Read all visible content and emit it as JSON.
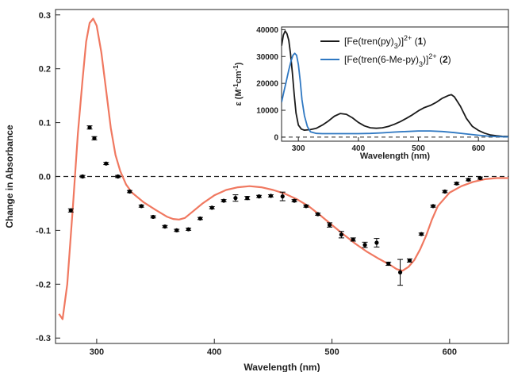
{
  "chart_data": [
    {
      "type": "scatter",
      "xlabel": "Wavelength (nm)",
      "ylabel": "Change in Absorbance",
      "xlim": [
        265,
        650
      ],
      "ylim": [
        -0.31,
        0.31
      ],
      "xticks": [
        300,
        400,
        500,
        600
      ],
      "yticks": [
        -0.3,
        -0.2,
        -0.1,
        0.0,
        0.1,
        0.2,
        0.3
      ],
      "ytick_labels": [
        "-0.3",
        "-0.2",
        "-0.1",
        "0.0",
        "0.1",
        "0.2",
        "0.3"
      ],
      "zero_line": "dashed",
      "grid": false,
      "colors": {
        "curve": "#f07860",
        "points": "#000000"
      },
      "series": [
        {
          "kind": "line",
          "x": [
            268,
            271,
            275,
            280,
            284,
            288,
            291,
            294,
            297,
            300,
            304,
            308,
            312,
            316,
            320,
            325,
            330,
            340,
            350,
            360,
            365,
            370,
            375,
            380,
            390,
            400,
            410,
            420,
            430,
            440,
            450,
            460,
            470,
            480,
            490,
            500,
            510,
            520,
            530,
            540,
            550,
            555,
            560,
            565,
            570,
            575,
            580,
            585,
            590,
            600,
            610,
            620,
            630,
            640,
            650
          ],
          "y": [
            -0.255,
            -0.265,
            -0.2,
            -0.05,
            0.08,
            0.18,
            0.25,
            0.285,
            0.293,
            0.28,
            0.23,
            0.16,
            0.09,
            0.04,
            0.01,
            -0.015,
            -0.03,
            -0.048,
            -0.062,
            -0.075,
            -0.079,
            -0.08,
            -0.077,
            -0.068,
            -0.05,
            -0.035,
            -0.025,
            -0.02,
            -0.018,
            -0.02,
            -0.025,
            -0.032,
            -0.042,
            -0.055,
            -0.072,
            -0.09,
            -0.108,
            -0.125,
            -0.14,
            -0.153,
            -0.165,
            -0.172,
            -0.175,
            -0.168,
            -0.155,
            -0.135,
            -0.11,
            -0.08,
            -0.055,
            -0.03,
            -0.018,
            -0.01,
            -0.005,
            -0.003,
            -0.003
          ]
        },
        {
          "kind": "points",
          "x": [
            278,
            288,
            294,
            298,
            308,
            318,
            328,
            338,
            348,
            358,
            368,
            378,
            388,
            398,
            408,
            418,
            428,
            438,
            448,
            458,
            468,
            478,
            488,
            498,
            508,
            518,
            528,
            538,
            548,
            558,
            566,
            576,
            586,
            596,
            606,
            616,
            626
          ],
          "y": [
            -0.063,
            0.0,
            0.091,
            0.071,
            0.024,
            0.0,
            -0.028,
            -0.055,
            -0.075,
            -0.093,
            -0.1,
            -0.098,
            -0.078,
            -0.058,
            -0.045,
            -0.04,
            -0.04,
            -0.037,
            -0.036,
            -0.037,
            -0.045,
            -0.055,
            -0.07,
            -0.09,
            -0.108,
            -0.117,
            -0.127,
            -0.123,
            -0.162,
            -0.178,
            -0.156,
            -0.107,
            -0.055,
            -0.028,
            -0.013,
            -0.006,
            -0.003
          ],
          "err": [
            0.003,
            0.002,
            0.003,
            0.003,
            0.002,
            0.002,
            0.002,
            0.002,
            0.002,
            0.002,
            0.002,
            0.002,
            0.002,
            0.002,
            0.002,
            0.006,
            0.003,
            0.002,
            0.002,
            0.008,
            0.002,
            0.002,
            0.002,
            0.004,
            0.006,
            0.003,
            0.005,
            0.008,
            0.003,
            0.024,
            0.003,
            0.002,
            0.002,
            0.002,
            0.002,
            0.002,
            0.002
          ]
        }
      ]
    },
    {
      "type": "line",
      "role": "inset",
      "xlabel": "Wavelength (nm)",
      "ylabel": "ε (M-1cm-1)",
      "xlim": [
        272,
        650
      ],
      "ylim": [
        -1500,
        41000
      ],
      "xticks": [
        300,
        400,
        500,
        600
      ],
      "yticks": [
        0,
        10000,
        20000,
        30000,
        40000
      ],
      "zero_line": "dashed",
      "legend": "top-right",
      "series": [
        {
          "name": "[Fe(tren(py)3)]2+ (1)",
          "name_parts": {
            "pre": "[Fe(tren(py)",
            "sub": "3",
            "mid": ")]",
            "sup": "2+",
            "post": " (1)"
          },
          "color": "#1a1a1a",
          "x": [
            272,
            275,
            278,
            281,
            284,
            287,
            290,
            293,
            296,
            300,
            305,
            310,
            320,
            330,
            340,
            350,
            360,
            370,
            380,
            390,
            400,
            410,
            420,
            430,
            440,
            450,
            460,
            470,
            480,
            490,
            500,
            510,
            520,
            530,
            540,
            550,
            555,
            560,
            570,
            580,
            590,
            600,
            610,
            620,
            630,
            640,
            650
          ],
          "y": [
            34000,
            38000,
            39500,
            38500,
            36000,
            31000,
            24000,
            16000,
            9000,
            4500,
            3000,
            2600,
            2800,
            3300,
            4500,
            6000,
            7800,
            8800,
            8500,
            7200,
            5500,
            4200,
            3500,
            3300,
            3500,
            4000,
            4800,
            5800,
            7000,
            8300,
            9800,
            11000,
            11800,
            13000,
            14500,
            15500,
            15800,
            15000,
            11500,
            7000,
            4000,
            2500,
            1500,
            800,
            500,
            300,
            200
          ]
        },
        {
          "name": "[Fe(tren(6-Me-py)3)]2+ (2)",
          "name_parts": {
            "pre": "[Fe(tren(6-Me-py)",
            "sub": "3",
            "mid": ")]",
            "sup": "2+",
            "post": " (2)"
          },
          "color": "#2f78c2",
          "x": [
            272,
            276,
            280,
            284,
            288,
            291,
            294,
            297,
            300,
            303,
            306,
            310,
            315,
            320,
            330,
            340,
            350,
            360,
            380,
            400,
            420,
            440,
            460,
            480,
            500,
            520,
            540,
            560,
            580,
            600,
            620,
            650
          ],
          "y": [
            13000,
            17000,
            21000,
            25000,
            28500,
            30500,
            31200,
            30500,
            27000,
            21000,
            14000,
            8000,
            4000,
            2000,
            1400,
            1300,
            1300,
            1300,
            1300,
            1300,
            1400,
            1600,
            1900,
            2100,
            2300,
            2300,
            2100,
            1700,
            1200,
            700,
            300,
            100
          ]
        }
      ]
    }
  ]
}
